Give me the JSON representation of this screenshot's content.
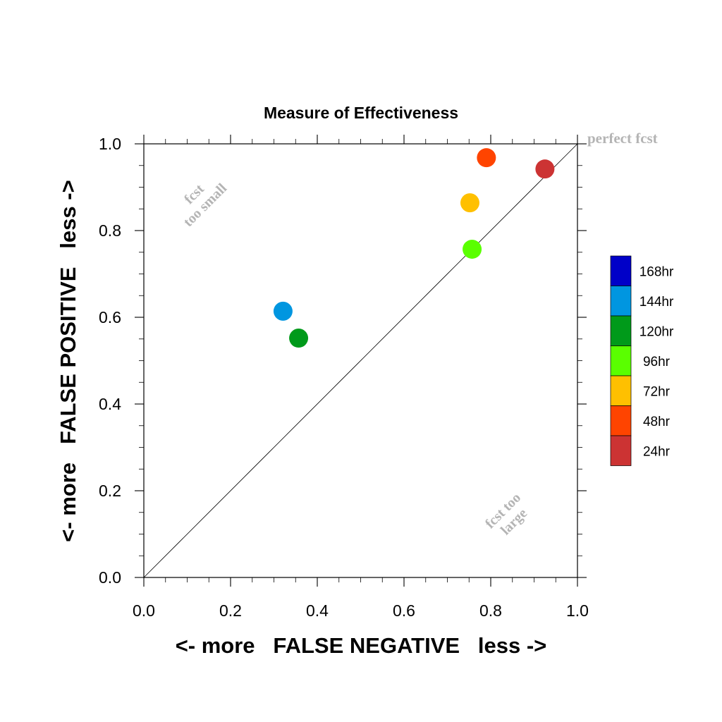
{
  "chart_data": {
    "type": "scatter",
    "title": "Measure of Effectiveness",
    "xlabel": "<- more   FALSE NEGATIVE   less ->",
    "ylabel": "<- more   FALSE POSITIVE   less ->",
    "xlim": [
      0.0,
      1.0
    ],
    "ylim": [
      0.0,
      1.0
    ],
    "xticks": [
      "0.0",
      "0.2",
      "0.4",
      "0.6",
      "0.8",
      "1.0"
    ],
    "yticks": [
      "0.0",
      "0.2",
      "0.4",
      "0.6",
      "0.8",
      "1.0"
    ],
    "grid": false,
    "diagonal_reference_line": true,
    "series": [
      {
        "name": "24hr",
        "color": "#cc3333",
        "x": 0.925,
        "y": 0.942
      },
      {
        "name": "48hr",
        "color": "#ff4400",
        "x": 0.79,
        "y": 0.968
      },
      {
        "name": "72hr",
        "color": "#ffc000",
        "x": 0.752,
        "y": 0.864
      },
      {
        "name": "96hr",
        "color": "#5aff00",
        "x": 0.757,
        "y": 0.757
      },
      {
        "name": "120hr",
        "color": "#009a1a",
        "x": 0.357,
        "y": 0.552
      },
      {
        "name": "144hr",
        "color": "#0096e0",
        "x": 0.321,
        "y": 0.614
      }
    ],
    "legend": {
      "placement": "right",
      "entries": [
        {
          "label": "168hr",
          "color": "#0000c8"
        },
        {
          "label": "144hr",
          "color": "#0096e0"
        },
        {
          "label": "120hr",
          "color": "#009a1a"
        },
        {
          "label": "96hr",
          "color": "#5aff00"
        },
        {
          "label": "72hr",
          "color": "#ffc000"
        },
        {
          "label": "48hr",
          "color": "#ff4400"
        },
        {
          "label": "24hr",
          "color": "#cc3333"
        }
      ]
    },
    "annotations": {
      "perfect": "perfect fcst",
      "small_line1": "fcst",
      "small_line2": "too small",
      "large_line1": "fcst too",
      "large_line2": "large"
    },
    "annotation_color": "#b4b4b4"
  }
}
